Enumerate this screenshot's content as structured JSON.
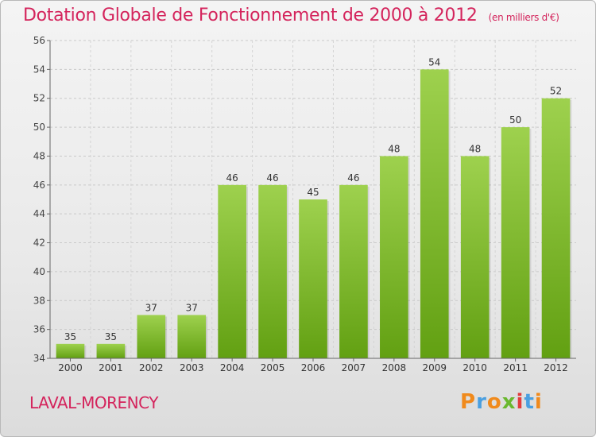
{
  "chart_data": {
    "type": "bar",
    "title": "Dotation Globale de Fonctionnement de 2000 à 2012",
    "subtitle": "(en milliers d'€)",
    "categories": [
      "2000",
      "2001",
      "2002",
      "2003",
      "2004",
      "2005",
      "2006",
      "2007",
      "2008",
      "2009",
      "2010",
      "2011",
      "2012"
    ],
    "values": [
      35,
      35,
      37,
      37,
      46,
      46,
      45,
      46,
      48,
      54,
      48,
      50,
      52
    ],
    "ylim": [
      34,
      56
    ],
    "yticks": [
      34,
      36,
      38,
      40,
      42,
      44,
      46,
      48,
      50,
      52,
      54,
      56
    ],
    "xlabel": "",
    "ylabel": "",
    "grid": true,
    "colors": {
      "bar_top": "#9ed14e",
      "bar_bottom": "#62a012",
      "title": "#d4245c"
    }
  },
  "commune": "LAVAL-MORENCY",
  "logo": {
    "letters": [
      "P",
      "r",
      "o",
      "x",
      "i",
      "t",
      "i"
    ],
    "colors": [
      "#f08a1c",
      "#4a9fe0",
      "#f08a1c",
      "#6ab82e",
      "#e23c3c",
      "#4a9fe0",
      "#f08a1c"
    ]
  }
}
